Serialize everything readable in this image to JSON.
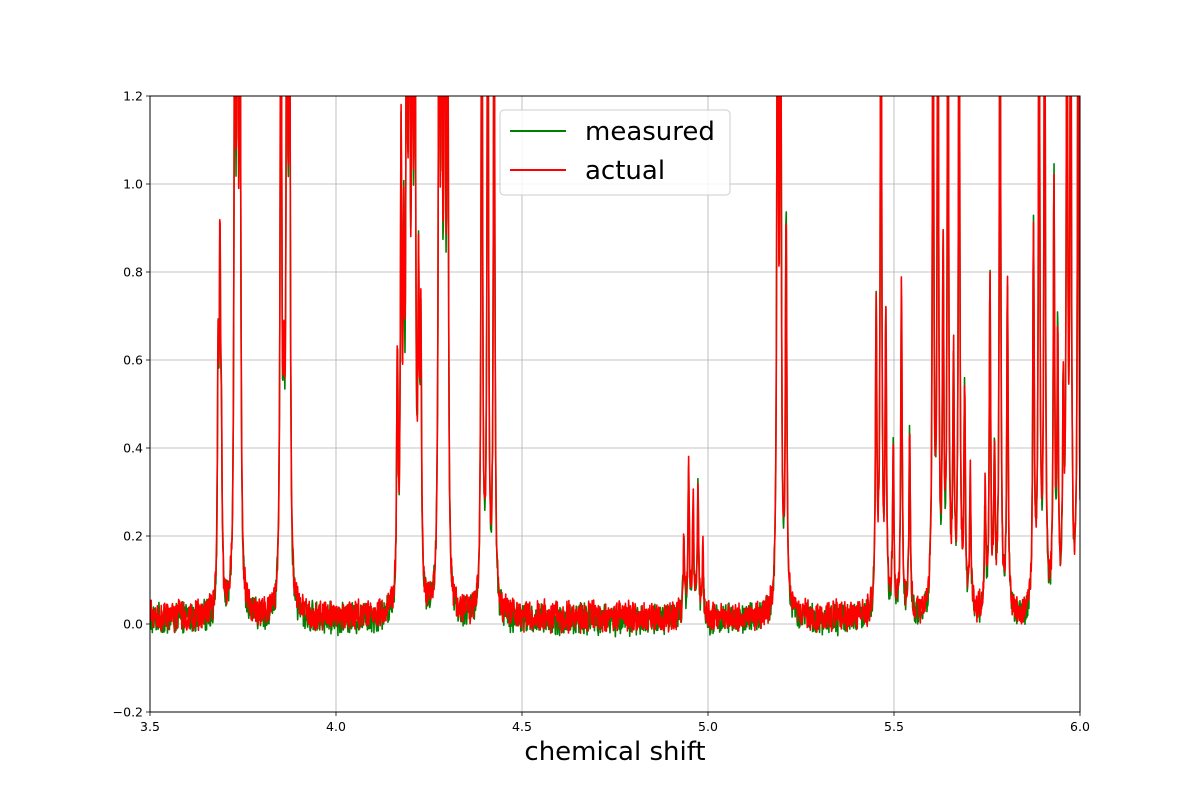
{
  "chart_data": {
    "type": "line",
    "title": "",
    "xlabel": "chemical shift",
    "ylabel": "",
    "xlim": [
      3.5,
      6.0
    ],
    "ylim": [
      -0.2,
      1.2
    ],
    "xticks": [
      "3.5",
      "4.0",
      "4.5",
      "5.0",
      "5.5",
      "6.0"
    ],
    "yticks": [
      "−0.2",
      "0.0",
      "0.2",
      "0.4",
      "0.6",
      "0.8",
      "1.0",
      "1.2"
    ],
    "grid": true,
    "legend_position": "upper-center",
    "baseline_noise": 0.02,
    "series": [
      {
        "name": "measured",
        "color": "#008000",
        "peaks": [
          {
            "x": 3.683,
            "h": 0.5
          },
          {
            "x": 3.688,
            "h": 0.75
          },
          {
            "x": 3.692,
            "h": 0.3
          },
          {
            "x": 3.728,
            "h": 1.6
          },
          {
            "x": 3.735,
            "h": 1.8
          },
          {
            "x": 3.742,
            "h": 1.5
          },
          {
            "x": 3.852,
            "h": 1.8
          },
          {
            "x": 3.86,
            "h": 0.4
          },
          {
            "x": 3.868,
            "h": 1.8
          },
          {
            "x": 3.875,
            "h": 1.6
          },
          {
            "x": 4.165,
            "h": 0.55
          },
          {
            "x": 4.175,
            "h": 1.0
          },
          {
            "x": 4.182,
            "h": 0.7
          },
          {
            "x": 4.19,
            "h": 1.6
          },
          {
            "x": 4.197,
            "h": 1.6
          },
          {
            "x": 4.205,
            "h": 1.5
          },
          {
            "x": 4.212,
            "h": 1.6
          },
          {
            "x": 4.222,
            "h": 0.65
          },
          {
            "x": 4.228,
            "h": 0.6
          },
          {
            "x": 4.277,
            "h": 1.7
          },
          {
            "x": 4.284,
            "h": 1.5
          },
          {
            "x": 4.292,
            "h": 1.7
          },
          {
            "x": 4.3,
            "h": 1.6
          },
          {
            "x": 4.392,
            "h": 1.7
          },
          {
            "x": 4.408,
            "h": 1.7
          },
          {
            "x": 4.425,
            "h": 1.6
          },
          {
            "x": 4.935,
            "h": 0.16
          },
          {
            "x": 4.948,
            "h": 0.32
          },
          {
            "x": 4.96,
            "h": 0.24
          },
          {
            "x": 4.973,
            "h": 0.28
          },
          {
            "x": 4.986,
            "h": 0.14
          },
          {
            "x": 5.187,
            "h": 1.7
          },
          {
            "x": 5.195,
            "h": 1.7
          },
          {
            "x": 5.21,
            "h": 0.92
          },
          {
            "x": 5.452,
            "h": 0.7
          },
          {
            "x": 5.465,
            "h": 1.7
          },
          {
            "x": 5.478,
            "h": 0.65
          },
          {
            "x": 5.498,
            "h": 0.38
          },
          {
            "x": 5.52,
            "h": 0.74
          },
          {
            "x": 5.542,
            "h": 0.4
          },
          {
            "x": 5.605,
            "h": 1.6
          },
          {
            "x": 5.618,
            "h": 1.6
          },
          {
            "x": 5.632,
            "h": 0.8
          },
          {
            "x": 5.645,
            "h": 1.6
          },
          {
            "x": 5.66,
            "h": 0.55
          },
          {
            "x": 5.675,
            "h": 1.6
          },
          {
            "x": 5.69,
            "h": 0.5
          },
          {
            "x": 5.705,
            "h": 0.3
          },
          {
            "x": 5.745,
            "h": 0.25
          },
          {
            "x": 5.758,
            "h": 0.75
          },
          {
            "x": 5.77,
            "h": 0.35
          },
          {
            "x": 5.785,
            "h": 1.6
          },
          {
            "x": 5.805,
            "h": 0.74
          },
          {
            "x": 5.875,
            "h": 0.86
          },
          {
            "x": 5.89,
            "h": 1.6
          },
          {
            "x": 5.905,
            "h": 1.6
          },
          {
            "x": 5.93,
            "h": 0.95
          },
          {
            "x": 5.94,
            "h": 0.6
          },
          {
            "x": 5.955,
            "h": 0.45
          },
          {
            "x": 5.965,
            "h": 1.6
          },
          {
            "x": 5.975,
            "h": 1.6
          },
          {
            "x": 5.995,
            "h": 1.6
          }
        ]
      },
      {
        "name": "actual",
        "color": "#ff0000",
        "peaks": [
          {
            "x": 3.683,
            "h": 0.5
          },
          {
            "x": 3.688,
            "h": 0.77
          },
          {
            "x": 3.692,
            "h": 0.3
          },
          {
            "x": 3.728,
            "h": 1.6
          },
          {
            "x": 3.735,
            "h": 1.8
          },
          {
            "x": 3.742,
            "h": 1.5
          },
          {
            "x": 3.852,
            "h": 1.8
          },
          {
            "x": 3.86,
            "h": 0.4
          },
          {
            "x": 3.868,
            "h": 1.8
          },
          {
            "x": 3.875,
            "h": 1.6
          },
          {
            "x": 4.165,
            "h": 0.56
          },
          {
            "x": 4.175,
            "h": 1.0
          },
          {
            "x": 4.182,
            "h": 0.7
          },
          {
            "x": 4.19,
            "h": 1.6
          },
          {
            "x": 4.197,
            "h": 1.6
          },
          {
            "x": 4.205,
            "h": 1.5
          },
          {
            "x": 4.212,
            "h": 1.6
          },
          {
            "x": 4.222,
            "h": 0.66
          },
          {
            "x": 4.228,
            "h": 0.6
          },
          {
            "x": 4.277,
            "h": 1.7
          },
          {
            "x": 4.284,
            "h": 1.5
          },
          {
            "x": 4.292,
            "h": 1.7
          },
          {
            "x": 4.3,
            "h": 1.6
          },
          {
            "x": 4.392,
            "h": 1.7
          },
          {
            "x": 4.408,
            "h": 1.7
          },
          {
            "x": 4.425,
            "h": 1.6
          },
          {
            "x": 4.935,
            "h": 0.17
          },
          {
            "x": 4.948,
            "h": 0.33
          },
          {
            "x": 4.96,
            "h": 0.25
          },
          {
            "x": 4.973,
            "h": 0.29
          },
          {
            "x": 4.986,
            "h": 0.15
          },
          {
            "x": 5.187,
            "h": 1.7
          },
          {
            "x": 5.195,
            "h": 1.7
          },
          {
            "x": 5.21,
            "h": 0.9
          },
          {
            "x": 5.452,
            "h": 0.71
          },
          {
            "x": 5.465,
            "h": 1.7
          },
          {
            "x": 5.478,
            "h": 0.66
          },
          {
            "x": 5.498,
            "h": 0.39
          },
          {
            "x": 5.52,
            "h": 0.75
          },
          {
            "x": 5.542,
            "h": 0.41
          },
          {
            "x": 5.605,
            "h": 1.6
          },
          {
            "x": 5.618,
            "h": 1.6
          },
          {
            "x": 5.632,
            "h": 0.8
          },
          {
            "x": 5.645,
            "h": 1.6
          },
          {
            "x": 5.66,
            "h": 0.55
          },
          {
            "x": 5.675,
            "h": 1.6
          },
          {
            "x": 5.69,
            "h": 0.5
          },
          {
            "x": 5.705,
            "h": 0.3
          },
          {
            "x": 5.745,
            "h": 0.26
          },
          {
            "x": 5.758,
            "h": 0.76
          },
          {
            "x": 5.77,
            "h": 0.35
          },
          {
            "x": 5.785,
            "h": 1.6
          },
          {
            "x": 5.805,
            "h": 0.74
          },
          {
            "x": 5.875,
            "h": 0.87
          },
          {
            "x": 5.89,
            "h": 1.6
          },
          {
            "x": 5.905,
            "h": 1.6
          },
          {
            "x": 5.93,
            "h": 0.95
          },
          {
            "x": 5.94,
            "h": 0.6
          },
          {
            "x": 5.955,
            "h": 0.45
          },
          {
            "x": 5.965,
            "h": 1.6
          },
          {
            "x": 5.975,
            "h": 1.6
          },
          {
            "x": 5.995,
            "h": 1.6
          }
        ]
      }
    ]
  }
}
